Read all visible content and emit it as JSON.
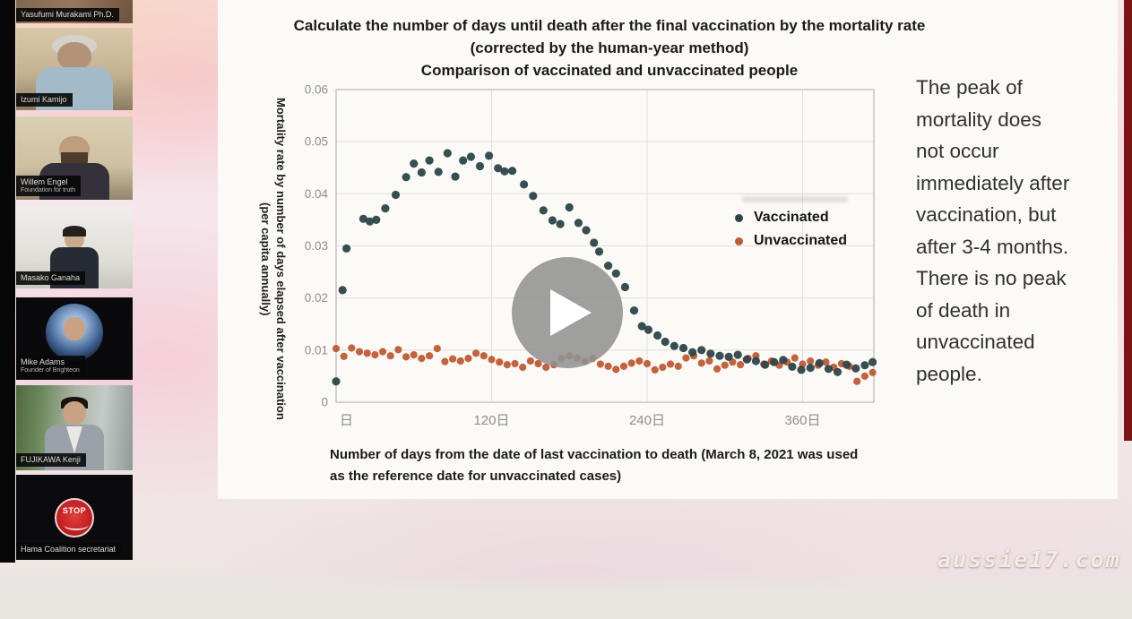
{
  "video_call": {
    "participants": [
      {
        "name": "Yasufumi Murakami Ph.D."
      },
      {
        "name": "Izumi Kamijo"
      },
      {
        "name": "Willem Engel",
        "subtitle": "Foundation for truth"
      },
      {
        "name": "Masako Ganaha"
      },
      {
        "name": "Mike Adams",
        "subtitle": "Founder of Brighteon"
      },
      {
        "name": "FUJIKAWA Kenji"
      },
      {
        "name": "Hama Coalition secretariat",
        "badge_text": "STOP"
      }
    ]
  },
  "slide": {
    "title": "Calculate the number of days until death after the final vaccination by the mortality rate\n(corrected by the human-year method)\nComparison of vaccinated and unvaccinated people",
    "x_axis_caption": "Number of days from the date of last vaccination to death (March 8, 2021 was used\nas the reference date for unvaccinated cases)",
    "side_note": "The peak of\nmortality does\nnot occur\nimmediately after\nvaccination, but\nafter 3-4 months.\nThere is no peak\nof death in\nunvaccinated\npeople."
  },
  "player": {
    "watermark": "aussie17.com"
  },
  "chart_data": {
    "type": "scatter",
    "title": "Comparison of vaccinated and unvaccinated people",
    "ylabel": "Mortality rate by number of days elapsed after vaccination",
    "ylabel2": "(per capita annually)",
    "xlabel": "Number of days from the date of last vaccination to death",
    "xlim": [
      0,
      415
    ],
    "ylim": [
      0,
      0.06
    ],
    "y_ticks": [
      0,
      0.01,
      0.02,
      0.03,
      0.04,
      0.05,
      0.06
    ],
    "x_ticks": [
      {
        "value": 0,
        "label": "日"
      },
      {
        "value": 120,
        "label": "120日"
      },
      {
        "value": 240,
        "label": "240日"
      },
      {
        "value": 360,
        "label": "360日"
      }
    ],
    "grid": true,
    "legend_position": "inside-right",
    "series": [
      {
        "name": "Vaccinated",
        "color": "#2c4449",
        "points": [
          [
            0,
            0.004
          ],
          [
            5,
            0.0215
          ],
          [
            8,
            0.0295
          ],
          [
            21,
            0.0352
          ],
          [
            26,
            0.0347
          ],
          [
            31,
            0.035
          ],
          [
            38,
            0.0372
          ],
          [
            46,
            0.0398
          ],
          [
            54,
            0.0432
          ],
          [
            60,
            0.0458
          ],
          [
            66,
            0.0441
          ],
          [
            72,
            0.0464
          ],
          [
            79,
            0.0442
          ],
          [
            86,
            0.0478
          ],
          [
            92,
            0.0433
          ],
          [
            98,
            0.0464
          ],
          [
            104,
            0.0471
          ],
          [
            111,
            0.0453
          ],
          [
            118,
            0.0473
          ],
          [
            125,
            0.0449
          ],
          [
            130,
            0.0443
          ],
          [
            136,
            0.0444
          ],
          [
            145,
            0.0418
          ],
          [
            152,
            0.0396
          ],
          [
            160,
            0.0368
          ],
          [
            167,
            0.0349
          ],
          [
            173,
            0.0342
          ],
          [
            180,
            0.0374
          ],
          [
            187,
            0.0344
          ],
          [
            193,
            0.033
          ],
          [
            199,
            0.0306
          ],
          [
            203,
            0.0289
          ],
          [
            210,
            0.0262
          ],
          [
            216,
            0.0247
          ],
          [
            223,
            0.0221
          ],
          [
            230,
            0.0176
          ],
          [
            236,
            0.0146
          ],
          [
            241,
            0.0139
          ],
          [
            248,
            0.0128
          ],
          [
            254,
            0.0116
          ],
          [
            261,
            0.0108
          ],
          [
            268,
            0.0104
          ],
          [
            275,
            0.0096
          ],
          [
            282,
            0.01
          ],
          [
            289,
            0.0093
          ],
          [
            296,
            0.0089
          ],
          [
            303,
            0.0087
          ],
          [
            310,
            0.0091
          ],
          [
            317,
            0.0082
          ],
          [
            324,
            0.0079
          ],
          [
            331,
            0.0072
          ],
          [
            338,
            0.0077
          ],
          [
            345,
            0.0081
          ],
          [
            352,
            0.0068
          ],
          [
            359,
            0.0062
          ],
          [
            366,
            0.0066
          ],
          [
            373,
            0.0075
          ],
          [
            380,
            0.0064
          ],
          [
            387,
            0.0058
          ],
          [
            394,
            0.0072
          ],
          [
            401,
            0.0065
          ],
          [
            408,
            0.0071
          ],
          [
            414,
            0.0077
          ]
        ]
      },
      {
        "name": "Unvaccinated",
        "color": "#c25a31",
        "points": [
          [
            0,
            0.0103
          ],
          [
            6,
            0.0088
          ],
          [
            12,
            0.0104
          ],
          [
            18,
            0.0097
          ],
          [
            24,
            0.0094
          ],
          [
            30,
            0.0091
          ],
          [
            36,
            0.0097
          ],
          [
            42,
            0.0089
          ],
          [
            48,
            0.0101
          ],
          [
            54,
            0.0087
          ],
          [
            60,
            0.0091
          ],
          [
            66,
            0.0084
          ],
          [
            72,
            0.0089
          ],
          [
            78,
            0.0103
          ],
          [
            84,
            0.0078
          ],
          [
            90,
            0.0083
          ],
          [
            96,
            0.0079
          ],
          [
            102,
            0.0084
          ],
          [
            108,
            0.0094
          ],
          [
            114,
            0.0089
          ],
          [
            120,
            0.0082
          ],
          [
            126,
            0.0077
          ],
          [
            132,
            0.0072
          ],
          [
            138,
            0.0074
          ],
          [
            144,
            0.0067
          ],
          [
            150,
            0.0079
          ],
          [
            156,
            0.0074
          ],
          [
            162,
            0.0067
          ],
          [
            168,
            0.0072
          ],
          [
            174,
            0.0084
          ],
          [
            180,
            0.0089
          ],
          [
            186,
            0.0085
          ],
          [
            192,
            0.0078
          ],
          [
            198,
            0.0084
          ],
          [
            204,
            0.0073
          ],
          [
            210,
            0.0069
          ],
          [
            216,
            0.0063
          ],
          [
            222,
            0.0069
          ],
          [
            228,
            0.0075
          ],
          [
            234,
            0.0079
          ],
          [
            240,
            0.0074
          ],
          [
            246,
            0.0062
          ],
          [
            252,
            0.0067
          ],
          [
            258,
            0.0073
          ],
          [
            264,
            0.0069
          ],
          [
            270,
            0.0085
          ],
          [
            276,
            0.0089
          ],
          [
            282,
            0.0075
          ],
          [
            288,
            0.0079
          ],
          [
            294,
            0.0064
          ],
          [
            300,
            0.0071
          ],
          [
            306,
            0.0077
          ],
          [
            312,
            0.0072
          ],
          [
            318,
            0.0084
          ],
          [
            324,
            0.0089
          ],
          [
            330,
            0.0073
          ],
          [
            336,
            0.0079
          ],
          [
            342,
            0.0071
          ],
          [
            348,
            0.0077
          ],
          [
            354,
            0.0085
          ],
          [
            360,
            0.0073
          ],
          [
            366,
            0.0079
          ],
          [
            372,
            0.0071
          ],
          [
            378,
            0.0077
          ],
          [
            384,
            0.0067
          ],
          [
            390,
            0.0074
          ],
          [
            396,
            0.0069
          ],
          [
            402,
            0.004
          ],
          [
            408,
            0.005
          ],
          [
            414,
            0.0057
          ]
        ]
      }
    ]
  }
}
